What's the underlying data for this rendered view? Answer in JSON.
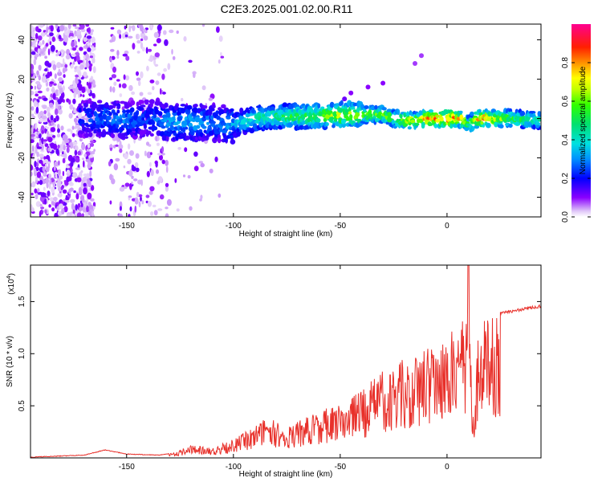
{
  "title": "C2E3.2025.001.02.00.R11",
  "chart_data": [
    {
      "type": "heatmap",
      "ylabel": "Frequency (Hz)",
      "xlabel": "Height of straight line (km)",
      "xlim": [
        -195,
        44
      ],
      "ylim": [
        -50,
        48
      ],
      "xticks": [
        -150,
        -100,
        -50,
        0
      ],
      "yticks": [
        -40,
        -20,
        0,
        20,
        40
      ],
      "colorbar": {
        "label": "Normalized spectral amplitude",
        "range": [
          0,
          1
        ],
        "ticks": [
          "0.0",
          "0.2",
          "0.4",
          "0.6",
          "0.8"
        ],
        "tick_values": [
          0,
          0.2,
          0.4,
          0.6,
          0.8
        ]
      },
      "ridge": {
        "x": [
          -170,
          -160,
          -150,
          -140,
          -130,
          -120,
          -110,
          -100,
          -90,
          -80,
          -70,
          -60,
          -50,
          -40,
          -30,
          -25,
          -20,
          -15,
          -10,
          -5,
          0,
          5,
          8,
          10,
          12,
          15,
          20,
          30,
          44
        ],
        "y": [
          0,
          0,
          -1,
          0,
          -2,
          -2,
          -2,
          -3,
          0,
          1,
          1,
          1,
          2,
          2,
          2,
          0,
          -1,
          -1,
          0,
          0,
          0,
          0,
          -1,
          -3,
          -1,
          0,
          0,
          0,
          -1
        ],
        "amplitude": [
          0.25,
          0.3,
          0.3,
          0.25,
          0.35,
          0.35,
          0.3,
          0.35,
          0.45,
          0.5,
          0.55,
          0.6,
          0.7,
          0.62,
          0.62,
          0.6,
          0.7,
          0.65,
          0.85,
          0.9,
          0.9,
          0.82,
          0.7,
          0.5,
          0.75,
          0.85,
          0.75,
          0.55,
          0.5
        ]
      },
      "grid": false
    },
    {
      "type": "line",
      "ylabel": "SNR (10 * v/v)",
      "xlabel": "Height of straight line (km)",
      "yscale_label": "(x10",
      "yscale_exp": "4",
      "yscale_close": ")",
      "xlim": [
        -195,
        44
      ],
      "ylim": [
        0,
        1.85
      ],
      "xticks": [
        -150,
        -100,
        -50,
        0
      ],
      "yticks": [
        0.5,
        1.0,
        1.5
      ],
      "ytick_labels": [
        "0.5",
        "1.0",
        "1.5"
      ],
      "color": "#e8302a",
      "envelope": {
        "x": [
          -195,
          -170,
          -160,
          -150,
          -135,
          -128,
          -120,
          -110,
          -100,
          -95,
          -90,
          -85,
          -80,
          -75,
          -70,
          -60,
          -50,
          -40,
          -30,
          -25,
          -20,
          -15,
          -10,
          -5,
          0,
          5,
          8,
          10,
          11,
          12,
          15,
          20,
          25,
          30,
          35,
          40,
          44
        ],
        "y": [
          0.01,
          0.03,
          0.08,
          0.04,
          0.03,
          0.05,
          0.12,
          0.1,
          0.18,
          0.24,
          0.3,
          0.4,
          0.35,
          0.3,
          0.35,
          0.45,
          0.52,
          0.65,
          0.85,
          0.9,
          0.95,
          1.05,
          1.1,
          1.15,
          1.2,
          1.25,
          1.35,
          1.6,
          1.3,
          0.35,
          1.3,
          1.35,
          1.4,
          1.42,
          1.44,
          1.46,
          1.47
        ]
      },
      "grid": false
    }
  ]
}
